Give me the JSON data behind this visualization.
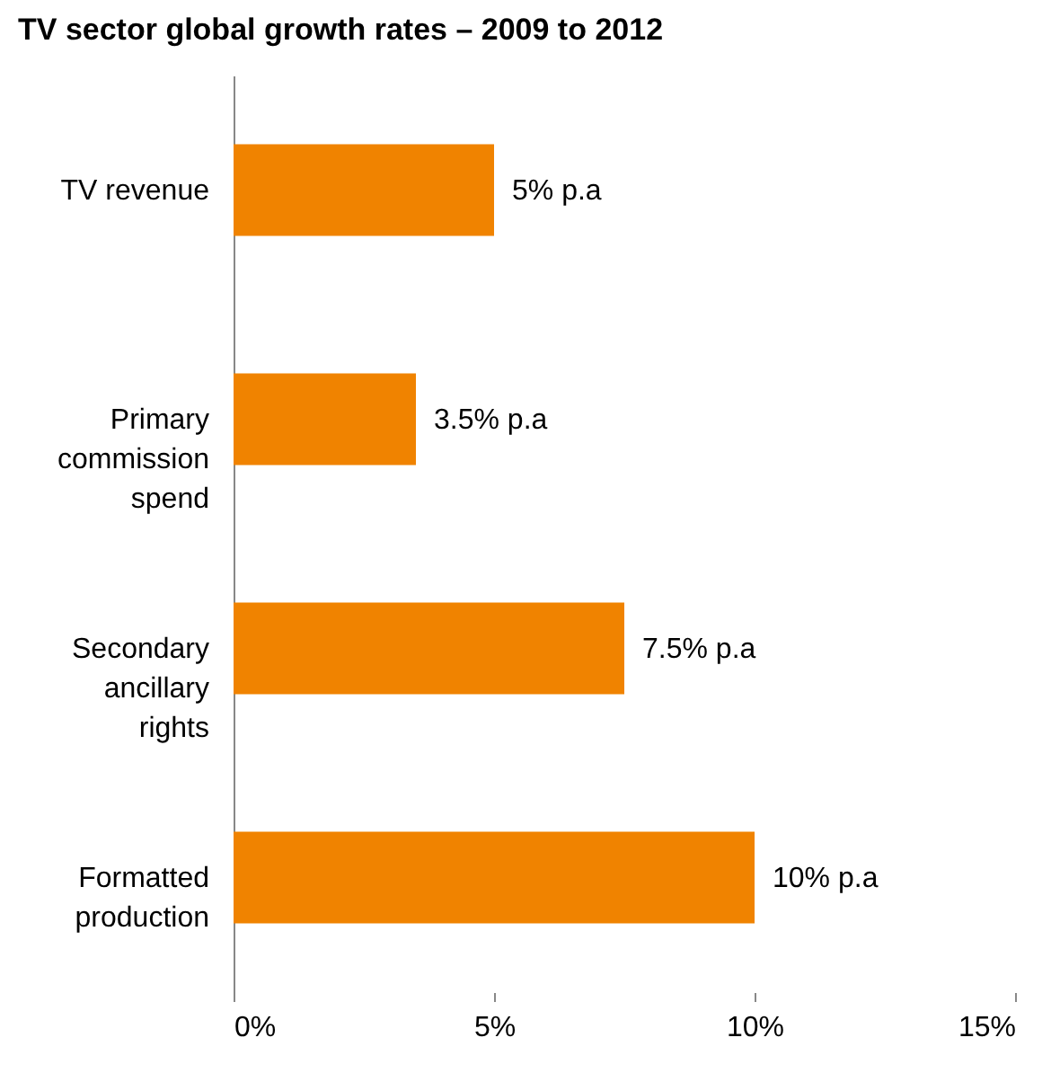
{
  "chart_data": {
    "type": "bar",
    "orientation": "horizontal",
    "title": "TV sector global growth rates – 2009 to 2012",
    "categories": [
      "TV revenue",
      "Primary commission spend",
      "Secondary ancillary rights",
      "Formatted production"
    ],
    "values": [
      5,
      3.5,
      7.5,
      10
    ],
    "value_labels": [
      "5% p.a",
      "3.5% p.a",
      "7.5% p.a",
      "10% p.a"
    ],
    "color": "#f08300",
    "xlim": [
      0,
      15
    ],
    "xticks": [
      {
        "value": 0,
        "label": "0%"
      },
      {
        "value": 5,
        "label": "5%"
      },
      {
        "value": 10,
        "label": "10%"
      },
      {
        "value": 15,
        "label": "15%"
      }
    ],
    "grid": false
  }
}
